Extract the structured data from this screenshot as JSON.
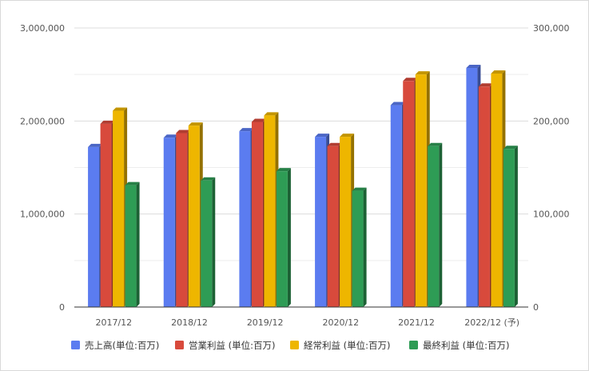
{
  "chart_data": {
    "type": "bar",
    "categories": [
      "2017/12",
      "2018/12",
      "2019/12",
      "2020/12",
      "2021/12",
      "2022/12 (予)"
    ],
    "left_axis": {
      "ylim": [
        0,
        3000000
      ],
      "ticks": [
        "0",
        "1,000,000",
        "2,000,000",
        "3,000,000"
      ]
    },
    "right_axis": {
      "ylim": [
        0,
        300000
      ],
      "ticks": [
        "0",
        "100,000",
        "200,000",
        "300,000"
      ]
    },
    "series": [
      {
        "name": "売上高(単位:百万)",
        "axis": "left",
        "color": "#5b7cf0",
        "values": [
          1720000,
          1820000,
          1890000,
          1830000,
          2170000,
          2570000
        ]
      },
      {
        "name": "営業利益 (単位:百万)",
        "axis": "right",
        "color": "#d84a3c",
        "values": [
          197000,
          187000,
          199000,
          173000,
          243000,
          237000
        ]
      },
      {
        "name": "経常利益 (単位:百万)",
        "axis": "right",
        "color": "#eeb600",
        "values": [
          211000,
          195000,
          206000,
          183000,
          250000,
          251000
        ]
      },
      {
        "name": "最終利益 (単位:百万)",
        "axis": "right",
        "color": "#2e9c55",
        "values": [
          131000,
          136000,
          146000,
          125000,
          173000,
          170000
        ]
      }
    ],
    "grid": true,
    "legend_position": "bottom"
  }
}
